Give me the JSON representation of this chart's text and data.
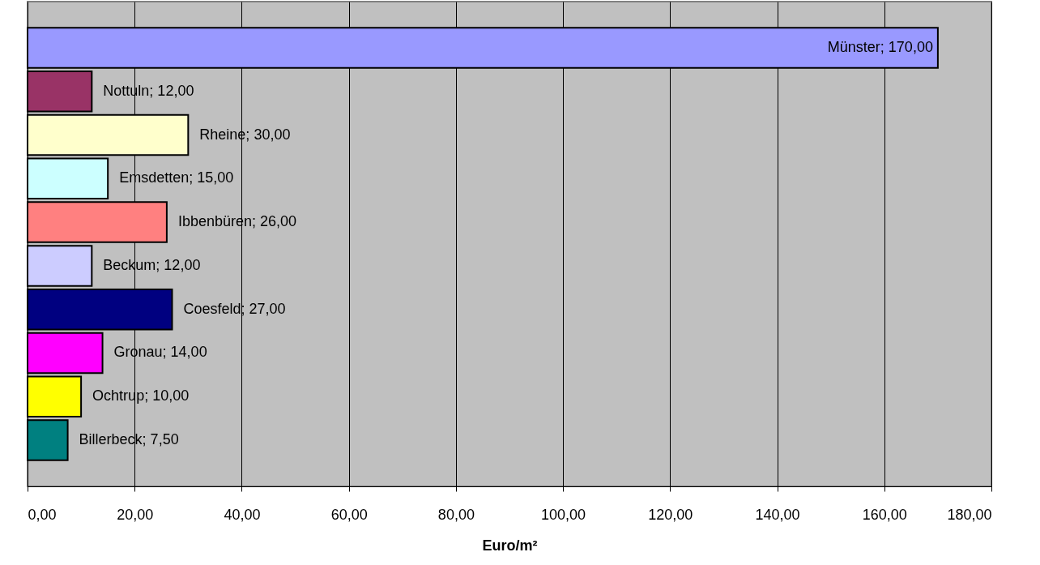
{
  "chart_data": {
    "type": "bar",
    "orientation": "horizontal",
    "categories": [
      null,
      null,
      null,
      null,
      null,
      null,
      null,
      null,
      null,
      null
    ],
    "values": [
      170,
      12,
      30,
      15,
      26,
      12,
      27,
      14,
      10,
      7.5
    ],
    "colors": [
      "#9999ff",
      "#993366",
      "#ffffcc",
      "#ccffff",
      "#ff8080",
      "#ccccff",
      "#000080",
      "#ff00ff",
      "#ffff00",
      "#008080"
    ],
    "value_labels": [
      "Münster; 170,00",
      "Nottuln; 12,00",
      "Rheine; 30,00",
      "Emsdetten; 15,00",
      "Ibbenbüren; 26,00",
      "Beckum; 12,00",
      "Coesfeld; 27,00",
      "Gronau; 14,00",
      "Ochtrup; 10,00",
      "Billerbeck; 7,50"
    ],
    "xlabel": "Euro/m²",
    "xlim": [
      0,
      180
    ],
    "xticks": [
      {
        "value": 0,
        "label": "0,00"
      },
      {
        "value": 20,
        "label": "20,00"
      },
      {
        "value": 40,
        "label": "40,00"
      },
      {
        "value": 60,
        "label": "60,00"
      },
      {
        "value": 80,
        "label": "80,00"
      },
      {
        "value": 100,
        "label": "100,00"
      },
      {
        "value": 120,
        "label": "120,00"
      },
      {
        "value": 140,
        "label": "140,00"
      },
      {
        "value": 160,
        "label": "160,00"
      },
      {
        "value": 180,
        "label": "180,00"
      }
    ],
    "grid": "x",
    "tick_labels": "x"
  }
}
